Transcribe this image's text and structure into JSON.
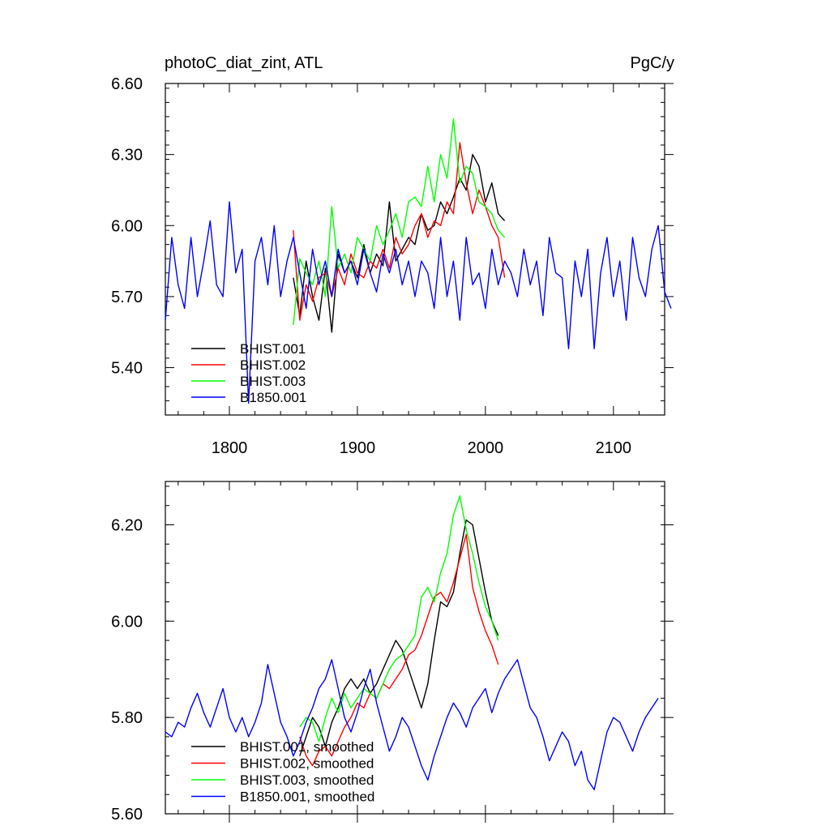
{
  "header": {
    "left_title": "photoC_diat_zint, ATL",
    "right_title": "PgC/y"
  },
  "colors": {
    "BHIST.001": "#000000",
    "BHIST.002": "#ff0000",
    "BHIST.003": "#00ff00",
    "B1850.001": "#0000ff"
  },
  "chart_data": [
    {
      "type": "line",
      "title": "",
      "xlabel": "",
      "ylabel": "",
      "xlim": [
        1750,
        2140
      ],
      "ylim": [
        5.2,
        6.6
      ],
      "xticks": [
        1800,
        1900,
        2000,
        2100
      ],
      "yticks": [
        "6.60",
        "6.30",
        "6.00",
        "5.70",
        "5.40"
      ],
      "legend_position": "bottom-left",
      "series": [
        {
          "name": "BHIST.001",
          "color": "#000000",
          "x_start": 1850,
          "step": 5,
          "values": [
            5.78,
            5.62,
            5.85,
            5.7,
            5.6,
            5.82,
            5.55,
            5.88,
            5.8,
            5.85,
            5.78,
            5.92,
            5.8,
            5.88,
            5.83,
            6.1,
            5.85,
            5.9,
            5.95,
            5.92,
            6.05,
            5.98,
            6.0,
            6.1,
            6.05,
            6.12,
            6.2,
            6.15,
            6.3,
            6.25,
            6.1,
            6.18,
            6.05,
            6.02
          ]
        },
        {
          "name": "BHIST.002",
          "color": "#ff0000",
          "x_start": 1850,
          "step": 5,
          "values": [
            5.98,
            5.6,
            5.75,
            5.68,
            5.78,
            5.8,
            5.7,
            5.82,
            5.75,
            5.88,
            5.8,
            5.78,
            5.85,
            5.82,
            5.9,
            5.82,
            5.95,
            5.88,
            5.92,
            6.0,
            6.05,
            5.95,
            6.02,
            6.0,
            6.1,
            6.05,
            6.35,
            6.18,
            6.05,
            6.15,
            6.08,
            6.0,
            5.95,
            5.78
          ]
        },
        {
          "name": "BHIST.003",
          "color": "#00ff00",
          "x_start": 1850,
          "step": 5,
          "values": [
            5.58,
            5.86,
            5.8,
            5.75,
            5.85,
            5.7,
            6.08,
            5.82,
            5.88,
            5.8,
            5.95,
            5.9,
            5.85,
            6.0,
            5.92,
            5.98,
            6.05,
            5.95,
            6.1,
            6.12,
            6.08,
            6.25,
            6.1,
            6.3,
            6.2,
            6.45,
            6.18,
            6.25,
            6.22,
            6.1,
            6.08,
            6.05,
            5.98,
            5.95
          ]
        },
        {
          "name": "B1850.001",
          "color": "#0000ff",
          "x_start": 1750,
          "step": 5,
          "values": [
            5.6,
            5.95,
            5.75,
            5.65,
            5.95,
            5.7,
            5.85,
            6.02,
            5.75,
            5.7,
            6.1,
            5.8,
            5.9,
            5.25,
            5.85,
            5.95,
            5.75,
            6.0,
            5.7,
            5.85,
            5.95,
            5.8,
            5.65,
            5.9,
            5.75,
            5.85,
            5.7,
            5.9,
            5.8,
            5.85,
            5.75,
            5.9,
            5.8,
            5.72,
            5.88,
            5.8,
            5.9,
            5.75,
            5.85,
            5.7,
            5.85,
            5.8,
            5.65,
            5.95,
            5.7,
            5.85,
            5.6,
            5.95,
            5.75,
            5.8,
            5.65,
            5.9,
            5.75,
            5.85,
            5.8,
            5.7,
            5.9,
            5.75,
            5.85,
            5.62,
            5.95,
            5.8,
            5.78,
            5.48,
            5.85,
            5.7,
            5.9,
            5.48,
            5.8,
            5.95,
            5.7,
            5.85,
            5.6,
            5.95,
            5.78,
            5.7,
            5.9,
            6.0,
            5.72,
            5.65
          ]
        }
      ]
    },
    {
      "type": "line",
      "title": "",
      "xlabel": "",
      "ylabel": "",
      "xlim": [
        1750,
        2140
      ],
      "ylim": [
        5.6,
        6.29
      ],
      "yticks": [
        "6.20",
        "6.00",
        "5.80",
        "5.60"
      ],
      "legend_position": "bottom-left",
      "series": [
        {
          "name": "BHIST.001, smoothed",
          "color": "#000000",
          "x_start": 1855,
          "step": 5,
          "values": [
            5.72,
            5.76,
            5.8,
            5.78,
            5.74,
            5.79,
            5.82,
            5.86,
            5.88,
            5.86,
            5.88,
            5.85,
            5.87,
            5.9,
            5.93,
            5.96,
            5.94,
            5.9,
            5.86,
            5.82,
            5.87,
            5.96,
            6.04,
            6.03,
            6.06,
            6.14,
            6.21,
            6.2,
            6.13,
            6.06,
            6.0,
            5.97
          ]
        },
        {
          "name": "BHIST.002, smoothed",
          "color": "#ff0000",
          "x_start": 1855,
          "step": 5,
          "values": [
            5.76,
            5.72,
            5.7,
            5.73,
            5.74,
            5.72,
            5.75,
            5.78,
            5.8,
            5.83,
            5.82,
            5.85,
            5.84,
            5.87,
            5.86,
            5.88,
            5.9,
            5.93,
            5.94,
            5.97,
            6.01,
            6.05,
            6.06,
            6.04,
            6.08,
            6.13,
            6.18,
            6.07,
            6.02,
            5.98,
            5.95,
            5.91
          ]
        },
        {
          "name": "BHIST.003, smoothed",
          "color": "#00ff00",
          "x_start": 1855,
          "step": 5,
          "values": [
            5.78,
            5.8,
            5.79,
            5.75,
            5.8,
            5.84,
            5.81,
            5.85,
            5.82,
            5.84,
            5.86,
            5.85,
            5.84,
            5.87,
            5.9,
            5.92,
            5.93,
            5.95,
            5.97,
            6.05,
            6.07,
            6.04,
            6.1,
            6.14,
            6.22,
            6.26,
            6.19,
            6.14,
            6.08,
            6.03,
            6.0,
            5.96
          ]
        },
        {
          "name": "B1850.001, smoothed",
          "color": "#0000ff",
          "x_start": 1750,
          "step": 5,
          "values": [
            5.77,
            5.76,
            5.79,
            5.78,
            5.82,
            5.85,
            5.81,
            5.78,
            5.82,
            5.86,
            5.8,
            5.77,
            5.8,
            5.76,
            5.79,
            5.83,
            5.91,
            5.85,
            5.79,
            5.76,
            5.72,
            5.75,
            5.79,
            5.82,
            5.86,
            5.88,
            5.92,
            5.86,
            5.8,
            5.77,
            5.81,
            5.86,
            5.9,
            5.83,
            5.78,
            5.73,
            5.76,
            5.8,
            5.78,
            5.74,
            5.7,
            5.67,
            5.72,
            5.76,
            5.8,
            5.83,
            5.81,
            5.78,
            5.82,
            5.84,
            5.86,
            5.81,
            5.85,
            5.88,
            5.9,
            5.92,
            5.87,
            5.82,
            5.8,
            5.76,
            5.71,
            5.74,
            5.77,
            5.75,
            5.7,
            5.73,
            5.67,
            5.65,
            5.71,
            5.77,
            5.8,
            5.79,
            5.76,
            5.73,
            5.77,
            5.8,
            5.82,
            5.84
          ]
        }
      ]
    }
  ]
}
